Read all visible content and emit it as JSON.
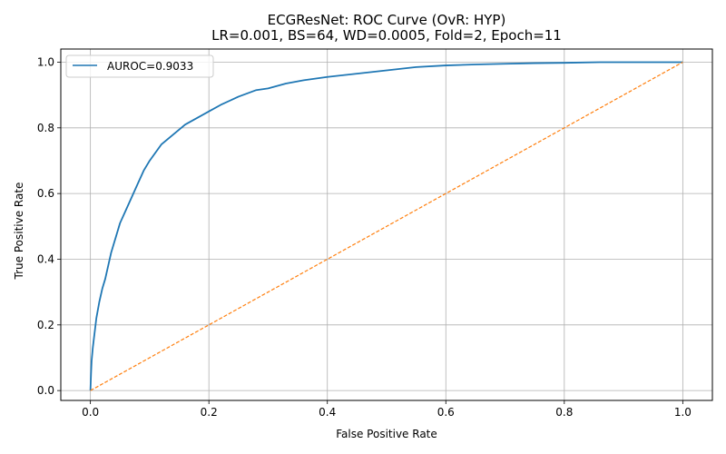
{
  "chart_data": {
    "type": "line",
    "title": "ECGResNet: ROC Curve (OvR: HYP)",
    "subtitle": "LR=0.001, BS=64, WD=0.0005, Fold=2, Epoch=11",
    "xlabel": "False Positive Rate",
    "ylabel": "True Positive Rate",
    "xlim": [
      -0.05,
      1.05
    ],
    "ylim": [
      -0.03,
      1.04
    ],
    "xticks": [
      0.0,
      0.2,
      0.4,
      0.6,
      0.8,
      1.0
    ],
    "yticks": [
      0.0,
      0.2,
      0.4,
      0.6,
      0.8,
      1.0
    ],
    "xtick_labels": [
      "0.0",
      "0.2",
      "0.4",
      "0.6",
      "0.8",
      "1.0"
    ],
    "ytick_labels": [
      "0.0",
      "0.2",
      "0.4",
      "0.6",
      "0.8",
      "1.0"
    ],
    "grid": true,
    "legend_position": "top-left",
    "series": [
      {
        "name": "AUROC=0.9033",
        "color": "#1f77b4",
        "style": "solid",
        "x": [
          0.0,
          0.001,
          0.002,
          0.004,
          0.006,
          0.008,
          0.01,
          0.015,
          0.02,
          0.025,
          0.03,
          0.035,
          0.04,
          0.05,
          0.06,
          0.07,
          0.08,
          0.09,
          0.1,
          0.12,
          0.14,
          0.16,
          0.18,
          0.2,
          0.22,
          0.25,
          0.28,
          0.3,
          0.33,
          0.36,
          0.4,
          0.45,
          0.5,
          0.55,
          0.6,
          0.65,
          0.7,
          0.75,
          0.8,
          0.86,
          0.9,
          0.95,
          1.0
        ],
        "y": [
          0.0,
          0.05,
          0.09,
          0.13,
          0.16,
          0.19,
          0.22,
          0.27,
          0.31,
          0.34,
          0.38,
          0.42,
          0.45,
          0.51,
          0.55,
          0.59,
          0.63,
          0.67,
          0.7,
          0.75,
          0.78,
          0.81,
          0.83,
          0.85,
          0.87,
          0.895,
          0.915,
          0.92,
          0.935,
          0.945,
          0.955,
          0.965,
          0.975,
          0.985,
          0.99,
          0.993,
          0.995,
          0.997,
          0.998,
          1.0,
          1.0,
          1.0,
          1.0
        ]
      },
      {
        "name": "",
        "color": "#ff7f0e",
        "style": "dashed",
        "x": [
          0.0,
          1.0
        ],
        "y": [
          0.0,
          1.0
        ]
      }
    ]
  }
}
